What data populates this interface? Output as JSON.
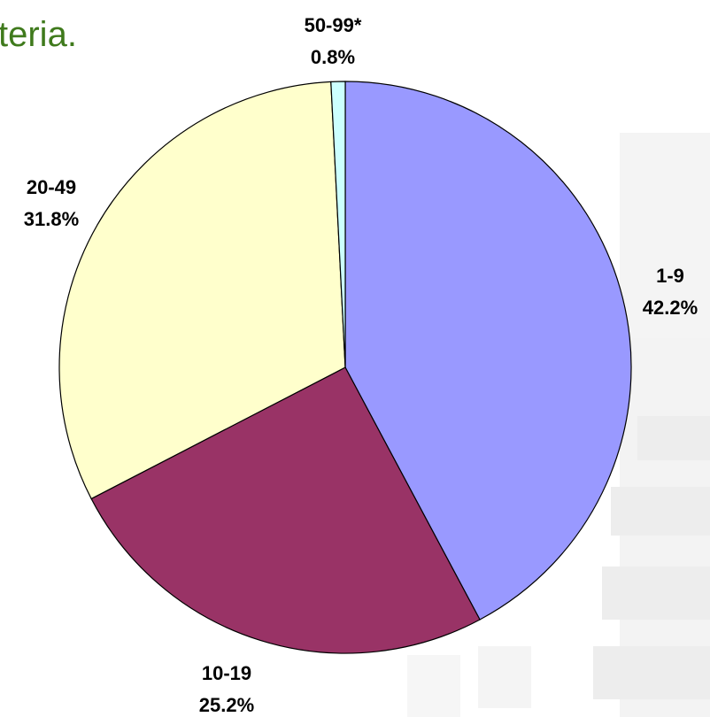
{
  "chart_data": {
    "type": "pie",
    "title": "teria.",
    "categories": [
      "1-9",
      "10-19",
      "20-49",
      "50-99*"
    ],
    "values": [
      42.2,
      25.2,
      31.8,
      0.8
    ],
    "value_labels": [
      "42.2%",
      "25.2%",
      "31.8%",
      "0.8%"
    ],
    "colors": [
      "#9999ff",
      "#993366",
      "#ffffcc",
      "#ccffff"
    ]
  }
}
